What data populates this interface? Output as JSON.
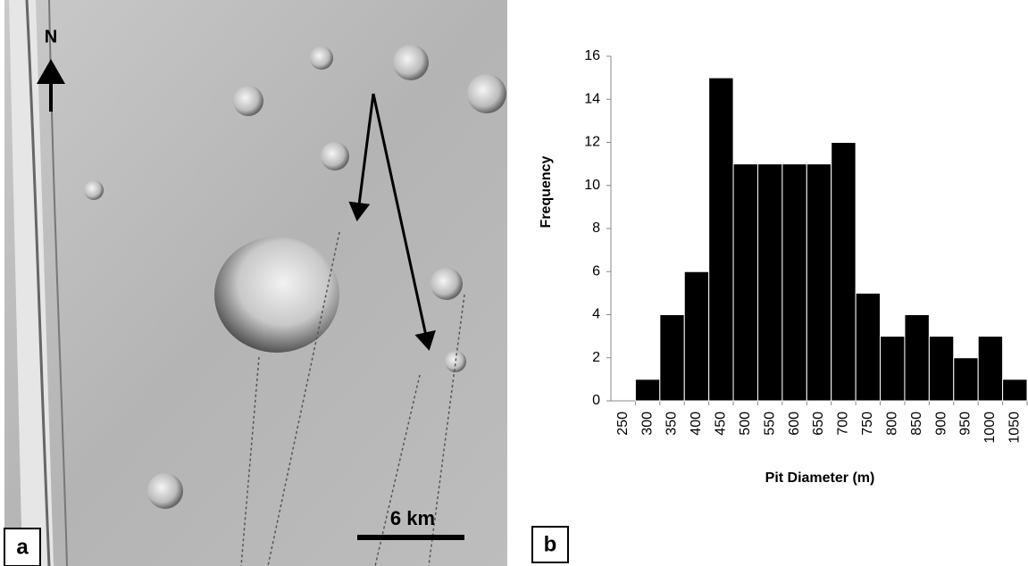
{
  "panels": {
    "a": "a",
    "b": "b"
  },
  "image": {
    "north": "N",
    "scale": "6 km"
  },
  "chart_data": {
    "type": "bar",
    "x_label": "Pit Diameter (m)",
    "y_label": "Frequency",
    "categories": [
      "250",
      "300",
      "350",
      "400",
      "450",
      "500",
      "550",
      "600",
      "650",
      "700",
      "750",
      "800",
      "850",
      "900",
      "950",
      "1000",
      "1050"
    ],
    "values": [
      0,
      1,
      4,
      6,
      15,
      11,
      11,
      11,
      11,
      12,
      5,
      3,
      4,
      3,
      2,
      3,
      1
    ],
    "color": "#000000",
    "ylim": [
      0,
      16
    ],
    "yticks": [
      0,
      2,
      4,
      6,
      8,
      10,
      12,
      14,
      16
    ],
    "grid": false
  }
}
